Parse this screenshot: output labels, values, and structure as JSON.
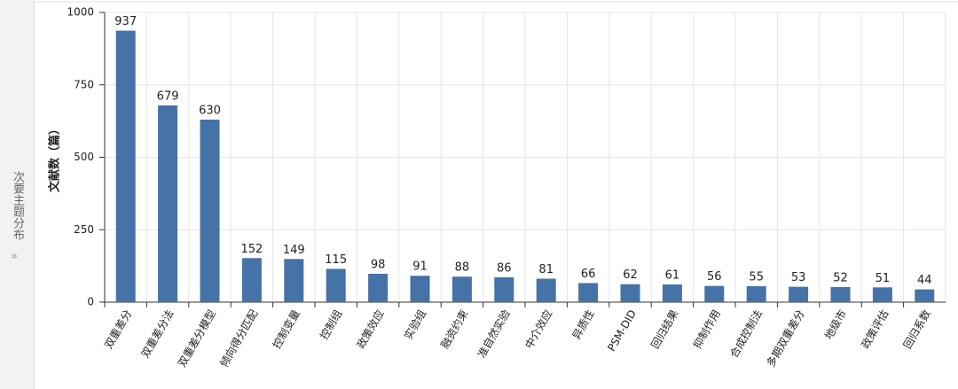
{
  "sidebar": {
    "label": "次要主题分布"
  },
  "chart_data": {
    "type": "bar",
    "y_label": "文献数（篇）",
    "categories": [
      "双重差分",
      "双重差分法",
      "双重差分模型",
      "倾向得分匹配",
      "控制变量",
      "控制组",
      "政策效应",
      "实验组",
      "融资约束",
      "准自然实验",
      "中介效应",
      "异质性",
      "PSM-DID",
      "回归结果",
      "抑制作用",
      "合成控制法",
      "多期双重差分",
      "地级市",
      "政策评估",
      "回归系数"
    ],
    "values": [
      937,
      679,
      630,
      152,
      149,
      115,
      98,
      91,
      88,
      86,
      81,
      66,
      62,
      61,
      56,
      55,
      53,
      52,
      51,
      44
    ],
    "color": "#4572a7",
    "ylim": [
      0,
      1000
    ],
    "yticks": [
      0,
      250,
      500,
      750,
      1000
    ],
    "grid": true
  }
}
